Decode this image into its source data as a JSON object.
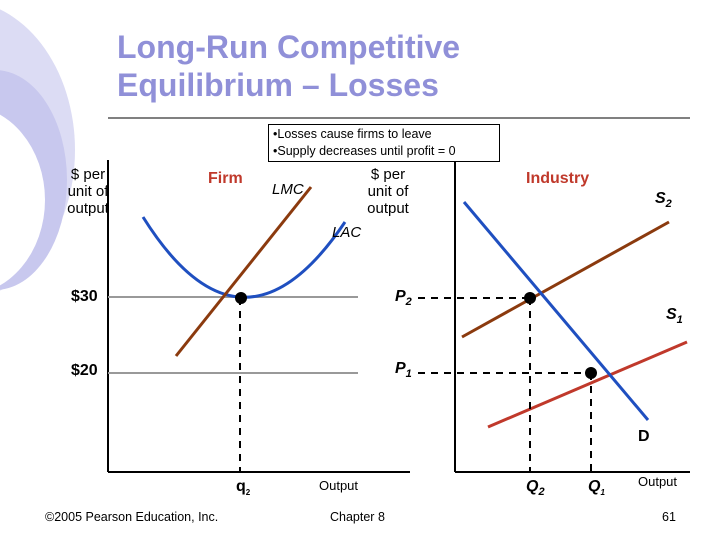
{
  "title_line1": "Long-Run Competitive",
  "title_line2": "Equilibrium – Losses",
  "notes": [
    "•Losses cause firms to leave",
    "•Supply decreases until profit = 0"
  ],
  "firm": {
    "panel_label": "Firm",
    "y_label": [
      "$ per",
      "unit of",
      "output"
    ],
    "x_label": "Output",
    "price_high": "$30",
    "price_low": "$20",
    "lmc_label": "LMC",
    "lac_label": "LAC",
    "quantity_label": "q",
    "quantity_sub": "2"
  },
  "industry": {
    "panel_label": "Industry",
    "y_label": [
      "$ per",
      "unit of",
      "output"
    ],
    "x_label": "Output",
    "p2_label": "P",
    "p2_sub": "2",
    "p1_label": "P",
    "p1_sub": "1",
    "s2_label": "S",
    "s2_sub": "2",
    "s1_label": "S",
    "s1_sub": "1",
    "d_label": "D",
    "q2_label": "Q",
    "q2_sub": "2",
    "q1_label": "Q",
    "q1_sub": "1"
  },
  "colors": {
    "title": "#9090d8",
    "supply": "#c0392b",
    "demand": "#1f4fc0",
    "lmc": "#8b3a0e",
    "lac": "#1f4fc0",
    "price_line": "#999999",
    "accent_disc": "#d8d8f2"
  },
  "footer": {
    "copyright": "©2005 Pearson Education, Inc.",
    "chapter": "Chapter 8",
    "page": "61"
  }
}
